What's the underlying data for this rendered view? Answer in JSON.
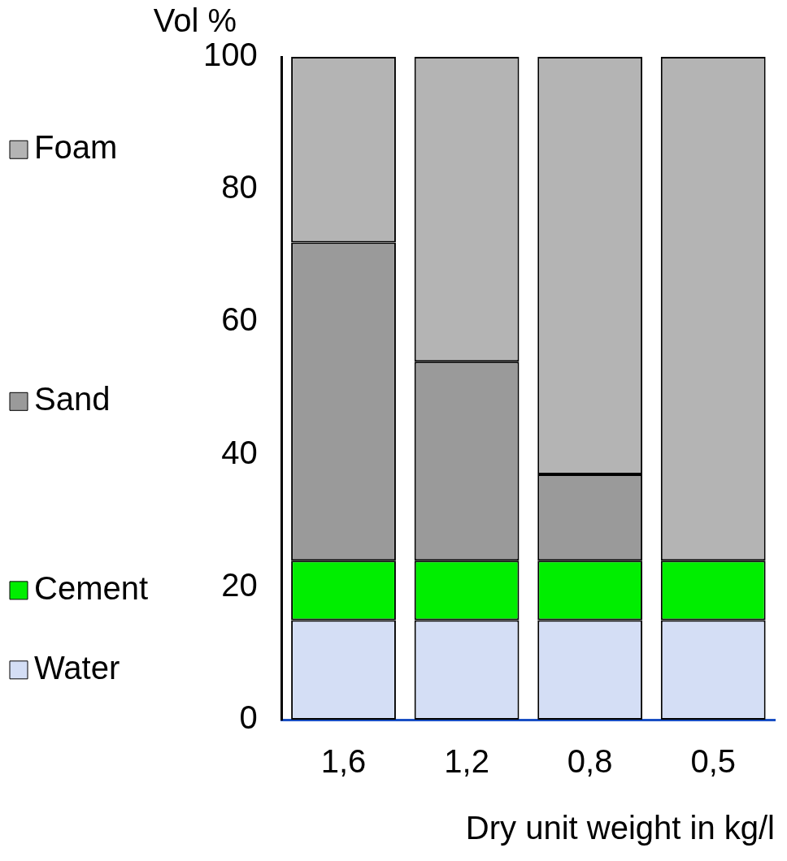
{
  "chart_data": {
    "type": "bar",
    "stacked": true,
    "xlabel": "Dry unit weight in kg/l",
    "ylabel": "Vol %",
    "categories": [
      "1,6",
      "1,2",
      "0,8",
      "0,5"
    ],
    "series": [
      {
        "name": "Water",
        "color": "#d4def5",
        "values": [
          15,
          15,
          15,
          15
        ]
      },
      {
        "name": "Cement",
        "color": "#00ee00",
        "values": [
          9,
          9,
          9,
          9
        ]
      },
      {
        "name": "Sand",
        "color": "#9a9a9a",
        "values": [
          48,
          30,
          13,
          0
        ]
      },
      {
        "name": "Foam",
        "color": "#b4b4b4",
        "values": [
          28,
          46,
          63,
          76
        ]
      }
    ],
    "ylim": [
      0,
      100
    ],
    "yticks": [
      0,
      20,
      40,
      60,
      80,
      100
    ],
    "grid": false,
    "legend": "left"
  }
}
